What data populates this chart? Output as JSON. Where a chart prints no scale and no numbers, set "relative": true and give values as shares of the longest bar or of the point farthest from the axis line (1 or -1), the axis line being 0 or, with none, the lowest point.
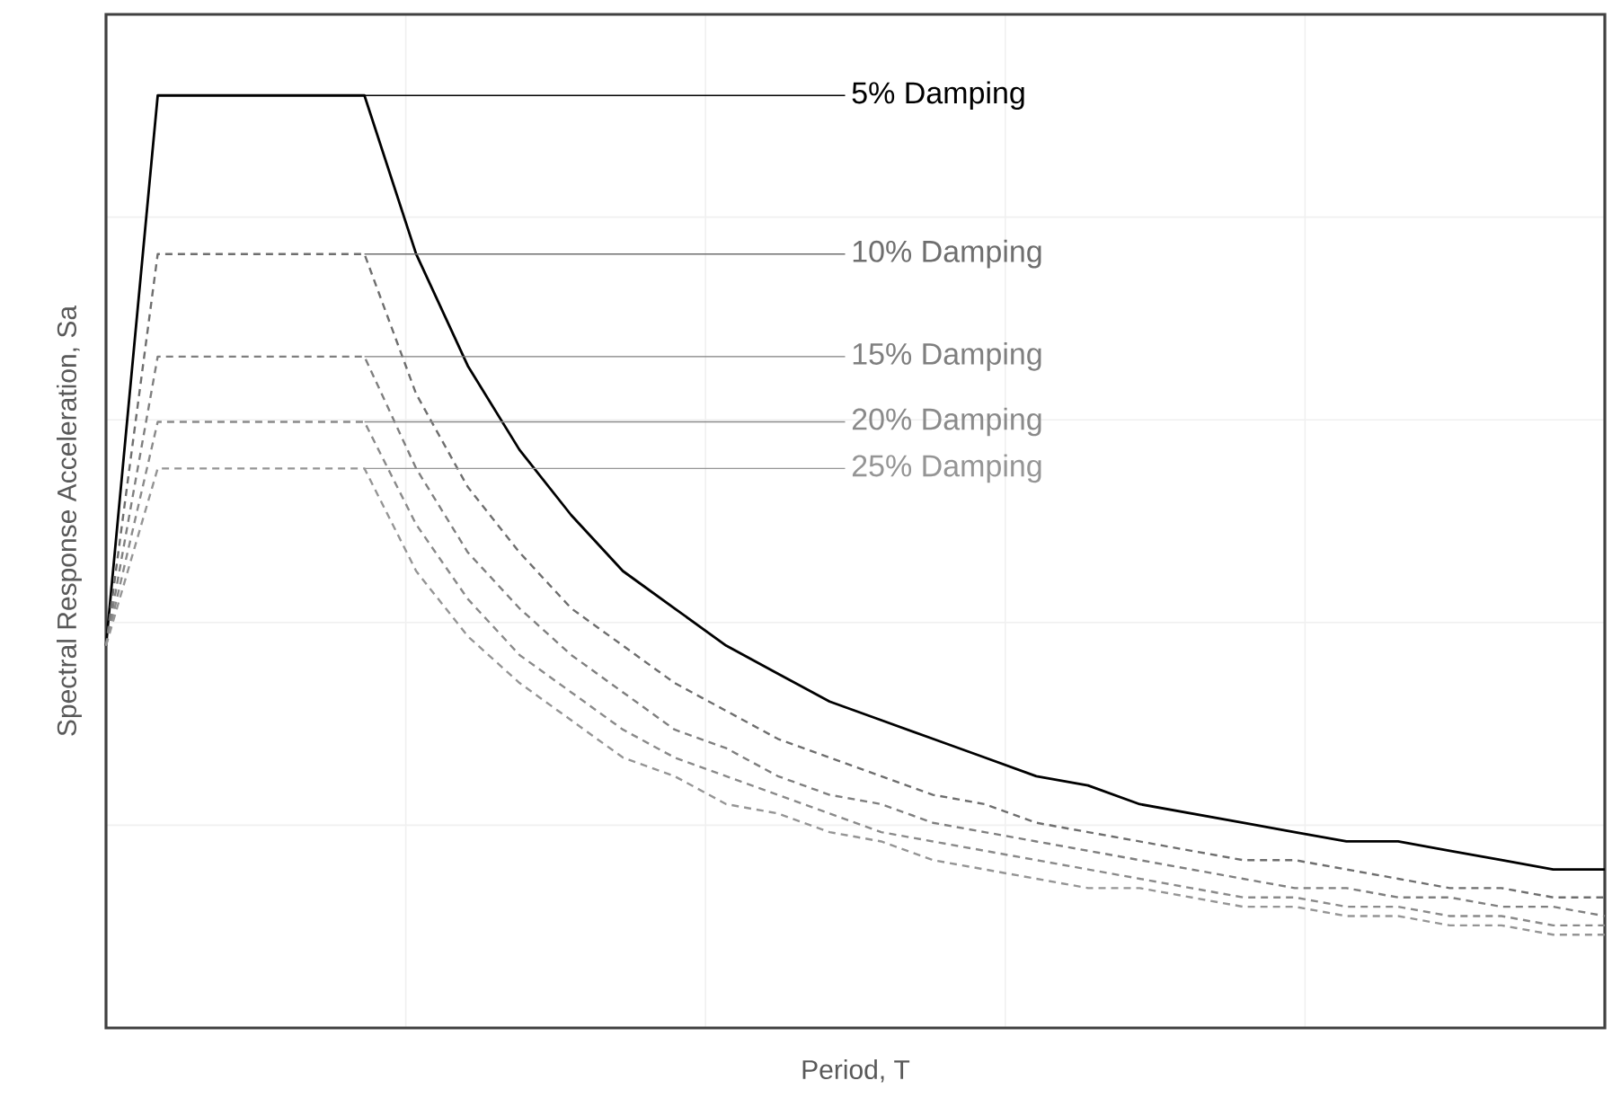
{
  "chart_data": {
    "type": "line",
    "relative": true,
    "grid": true,
    "xlabel": "Period, T",
    "ylabel": "Spectral Response Acceleration, Sa",
    "categories": [
      null,
      null,
      null,
      null,
      null,
      null,
      null,
      null,
      null,
      null,
      null,
      null,
      null,
      null,
      null,
      null,
      null,
      null,
      null,
      null,
      null,
      null,
      null,
      null,
      null,
      null,
      null,
      null,
      null,
      null
    ],
    "series": [
      {
        "name": "5% Damping",
        "color": "#000000",
        "line_style": "solid",
        "values": [
          0.41,
          1,
          1,
          1,
          1,
          1,
          0.83,
          0.71,
          0.62,
          0.55,
          0.49,
          0.45,
          0.41,
          0.38,
          0.35,
          0.33,
          0.31,
          0.29,
          0.27,
          0.26,
          0.24,
          0.23,
          0.22,
          0.21,
          0.2,
          0.2,
          0.19,
          0.18,
          0.17,
          0.17
        ]
      },
      {
        "name": "10% Damping",
        "color": "#6e6e6e",
        "line_style": "dashed",
        "values": [
          0.41,
          0.83,
          0.83,
          0.83,
          0.83,
          0.83,
          0.68,
          0.58,
          0.51,
          0.45,
          0.41,
          0.37,
          0.34,
          0.31,
          0.29,
          0.27,
          0.25,
          0.24,
          0.22,
          0.21,
          0.2,
          0.19,
          0.18,
          0.18,
          0.17,
          0.16,
          0.15,
          0.15,
          0.14,
          0.14
        ]
      },
      {
        "name": "15% Damping",
        "color": "#7f7f7f",
        "line_style": "dashed",
        "values": [
          0.41,
          0.72,
          0.72,
          0.72,
          0.72,
          0.72,
          0.6,
          0.51,
          0.45,
          0.4,
          0.36,
          0.32,
          0.3,
          0.27,
          0.25,
          0.24,
          0.22,
          0.21,
          0.2,
          0.19,
          0.18,
          0.17,
          0.16,
          0.15,
          0.15,
          0.14,
          0.14,
          0.13,
          0.13,
          0.12
        ]
      },
      {
        "name": "20% Damping",
        "color": "#8a8a8a",
        "line_style": "dashed",
        "values": [
          0.41,
          0.65,
          0.65,
          0.65,
          0.65,
          0.65,
          0.54,
          0.46,
          0.4,
          0.36,
          0.32,
          0.29,
          0.27,
          0.25,
          0.23,
          0.21,
          0.2,
          0.19,
          0.18,
          0.17,
          0.16,
          0.15,
          0.14,
          0.14,
          0.13,
          0.13,
          0.12,
          0.12,
          0.11,
          0.11
        ]
      },
      {
        "name": "25% Damping",
        "color": "#959595",
        "line_style": "dashed",
        "values": [
          0.41,
          0.6,
          0.6,
          0.6,
          0.6,
          0.6,
          0.49,
          0.42,
          0.37,
          0.33,
          0.29,
          0.27,
          0.24,
          0.23,
          0.21,
          0.2,
          0.18,
          0.17,
          0.16,
          0.15,
          0.15,
          0.14,
          0.13,
          0.13,
          0.12,
          0.12,
          0.11,
          0.11,
          0.1,
          0.1
        ]
      }
    ]
  }
}
